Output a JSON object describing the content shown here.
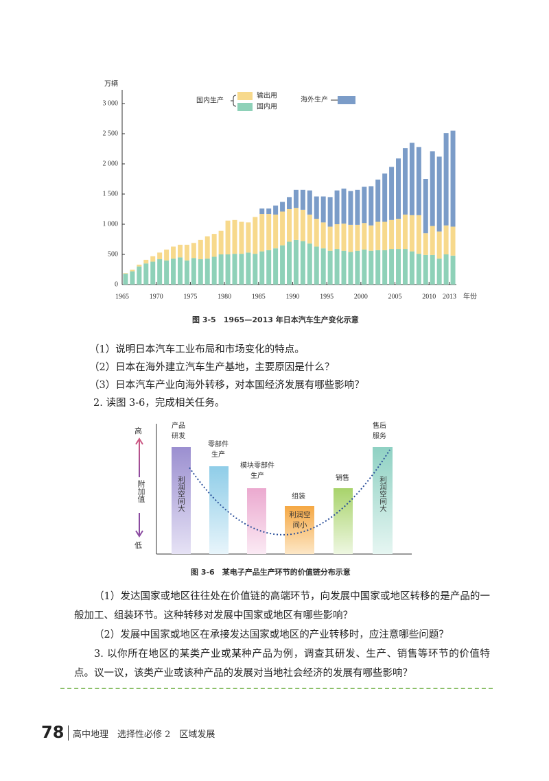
{
  "chart_data": {
    "type": "bar",
    "stacked": true,
    "y_label": "万辆",
    "x_label": "年份",
    "legend_group": "国内生产",
    "x": [
      1965,
      1966,
      1967,
      1968,
      1969,
      1970,
      1971,
      1972,
      1973,
      1974,
      1975,
      1976,
      1977,
      1978,
      1979,
      1980,
      1981,
      1982,
      1983,
      1984,
      1985,
      1986,
      1987,
      1988,
      1989,
      1990,
      1991,
      1992,
      1993,
      1994,
      1995,
      1996,
      1997,
      1998,
      1999,
      2000,
      2001,
      2002,
      2003,
      2004,
      2005,
      2006,
      2007,
      2008,
      2009,
      2010,
      2011,
      2012,
      2013
    ],
    "series": [
      {
        "name": "国内用",
        "color": "#8ed1b8",
        "values": [
          180,
          220,
          300,
          350,
          380,
          420,
          400,
          430,
          450,
          400,
          440,
          420,
          430,
          460,
          500,
          500,
          510,
          510,
          530,
          510,
          550,
          570,
          600,
          650,
          710,
          740,
          720,
          680,
          630,
          600,
          560,
          590,
          560,
          540,
          560,
          580,
          560,
          570,
          570,
          590,
          590,
          590,
          550,
          510,
          490,
          490,
          430,
          500,
          480
        ]
      },
      {
        "name": "输出用",
        "color": "#f7d98c",
        "values": [
          10,
          25,
          30,
          60,
          90,
          110,
          180,
          200,
          210,
          260,
          250,
          320,
          370,
          380,
          390,
          560,
          560,
          530,
          500,
          610,
          620,
          600,
          560,
          560,
          540,
          530,
          520,
          480,
          460,
          430,
          400,
          410,
          450,
          450,
          430,
          440,
          420,
          470,
          470,
          480,
          500,
          570,
          600,
          640,
          360,
          480,
          450,
          480,
          480
        ]
      },
      {
        "name": "海外生产",
        "color": "#7b9cc8",
        "values": [
          0,
          0,
          0,
          0,
          0,
          0,
          0,
          0,
          0,
          0,
          0,
          0,
          0,
          0,
          0,
          0,
          0,
          0,
          0,
          0,
          90,
          90,
          150,
          160,
          200,
          300,
          330,
          400,
          370,
          430,
          490,
          560,
          580,
          560,
          580,
          600,
          650,
          700,
          800,
          880,
          1000,
          1100,
          1200,
          1130,
          900,
          1240,
          1240,
          1530,
          1590
        ]
      }
    ],
    "xlim": [
      1965,
      2014
    ],
    "xticks": [
      1965,
      1970,
      1975,
      1980,
      1985,
      1990,
      1995,
      2000,
      2005,
      2010,
      2013
    ],
    "ylim": [
      0,
      3000
    ],
    "yticks": [
      0,
      500,
      {
        "value": 1000,
        "label": "1 000"
      },
      {
        "value": 1500,
        "label": "1 500"
      },
      {
        "value": 2000,
        "label": "2 000"
      },
      {
        "value": 2500,
        "label": "2 500"
      },
      {
        "value": 3000,
        "label": "3 000"
      }
    ]
  },
  "figure1": {
    "caption": "图 3-5　1965—2013 年日本汽车生产变化示意"
  },
  "questions1": [
    "（1）说明日本汽车工业布局和市场变化的特点。",
    "（2）日本在海外建立汽车生产基地，主要原因是什么？",
    "（3）日本汽车产业向海外转移，对本国经济发展有哪些影响？"
  ],
  "task2": "2. 读图 3-6，完成相关任务。",
  "figure2": {
    "high": "高",
    "axis": "附加值",
    "low": "低",
    "stages": [
      "产品研发",
      "零部件生产",
      "模块零部件生产",
      "组装",
      "销售",
      "售后服务"
    ],
    "inner": [
      "利润空间大",
      "利润空间小",
      "利润空间大"
    ],
    "caption": "图 3-6　某电子产品生产环节的价值链分布示意"
  },
  "paragraphs": [
    "（1）发达国家或地区往往处在价值链的高端环节，向发展中国家或地区转移的是产品的一般加工、组装环节。这种转移对发展中国家或地区有哪些影响？",
    "（2）发展中国家或地区在承接发达国家或地区的产业转移时，应注意哪些问题？",
    "3. 以你所在地区的某类产业或某种产品为例，调查其研发、生产、销售等环节的价值特点。议一议，该类产业或该种产品的发展对当地社会经济的发展有哪些影响？"
  ],
  "footer": {
    "page": "78",
    "text": "高中地理　选择性必修 2　区域发展"
  }
}
